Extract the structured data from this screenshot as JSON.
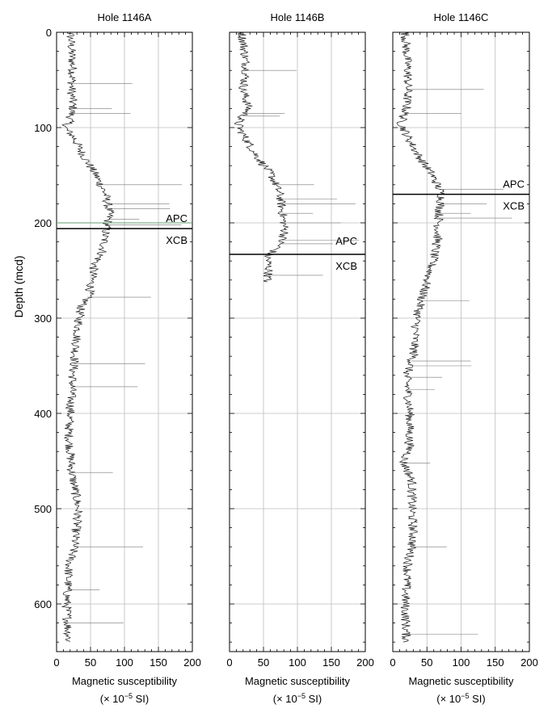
{
  "y_axis": {
    "label": "Depth (mcd)",
    "ticks": [
      0,
      100,
      200,
      300,
      400,
      500,
      600
    ],
    "range": [
      0,
      650
    ]
  },
  "x_axis": {
    "range": [
      0,
      200
    ],
    "ticks": [
      0,
      50,
      100,
      150,
      200
    ],
    "tick_labels": [
      "0",
      "50",
      "100",
      "150",
      "200"
    ],
    "label": "Magnetic susceptibility",
    "units": "(× 10",
    "units_sup": "−5",
    "units_end": " SI)"
  },
  "chart_data": [
    {
      "type": "line",
      "title": "Hole 1146A",
      "xlabel": "Magnetic susceptibility (× 10−5 SI)",
      "ylabel": "Depth (mcd)",
      "xlim": [
        0,
        200
      ],
      "ylim": [
        650,
        0
      ],
      "grid": true,
      "markers": [
        {
          "label": "APC",
          "depth": 200,
          "color": "#5f9f6f"
        },
        {
          "label": "XCB",
          "depth": 206,
          "color": "#000000"
        }
      ],
      "spike_depths": [
        54,
        80,
        85,
        160,
        180,
        185,
        196,
        202,
        278,
        348,
        372,
        462,
        540,
        585,
        620
      ],
      "profile": [
        {
          "d": 0,
          "v": 20
        },
        {
          "d": 20,
          "v": 22
        },
        {
          "d": 40,
          "v": 24
        },
        {
          "d": 60,
          "v": 22
        },
        {
          "d": 80,
          "v": 24
        },
        {
          "d": 95,
          "v": 18
        },
        {
          "d": 100,
          "v": 12
        },
        {
          "d": 110,
          "v": 25
        },
        {
          "d": 130,
          "v": 40
        },
        {
          "d": 150,
          "v": 58
        },
        {
          "d": 170,
          "v": 72
        },
        {
          "d": 190,
          "v": 78
        },
        {
          "d": 210,
          "v": 72
        },
        {
          "d": 230,
          "v": 68
        },
        {
          "d": 245,
          "v": 55
        },
        {
          "d": 260,
          "v": 52
        },
        {
          "d": 275,
          "v": 48
        },
        {
          "d": 290,
          "v": 35
        },
        {
          "d": 320,
          "v": 30
        },
        {
          "d": 360,
          "v": 24
        },
        {
          "d": 400,
          "v": 20
        },
        {
          "d": 420,
          "v": 18
        },
        {
          "d": 460,
          "v": 22
        },
        {
          "d": 500,
          "v": 32
        },
        {
          "d": 540,
          "v": 26
        },
        {
          "d": 560,
          "v": 18
        },
        {
          "d": 600,
          "v": 15
        },
        {
          "d": 640,
          "v": 18
        }
      ]
    },
    {
      "type": "line",
      "title": "Hole 1146B",
      "xlabel": "Magnetic susceptibility (× 10−5 SI)",
      "ylabel": "",
      "xlim": [
        0,
        200
      ],
      "ylim": [
        650,
        0
      ],
      "grid": true,
      "markers": [
        {
          "label": "APC",
          "depth": 220,
          "color": "#000000"
        },
        {
          "label": "XCB",
          "depth": 233,
          "color": "#000000"
        }
      ],
      "spike_depths": [
        40,
        85,
        88,
        160,
        175,
        180,
        190,
        200,
        218,
        222,
        255
      ],
      "profile": [
        {
          "d": 0,
          "v": 18
        },
        {
          "d": 20,
          "v": 22
        },
        {
          "d": 40,
          "v": 25
        },
        {
          "d": 60,
          "v": 20
        },
        {
          "d": 80,
          "v": 28
        },
        {
          "d": 95,
          "v": 12
        },
        {
          "d": 105,
          "v": 18
        },
        {
          "d": 130,
          "v": 40
        },
        {
          "d": 150,
          "v": 62
        },
        {
          "d": 170,
          "v": 74
        },
        {
          "d": 190,
          "v": 78
        },
        {
          "d": 210,
          "v": 82
        },
        {
          "d": 225,
          "v": 72
        },
        {
          "d": 235,
          "v": 56
        },
        {
          "d": 250,
          "v": 58
        },
        {
          "d": 262,
          "v": 55
        }
      ]
    },
    {
      "type": "line",
      "title": "Hole 1146C",
      "xlabel": "Magnetic susceptibility (× 10−5 SI)",
      "ylabel": "",
      "xlim": [
        0,
        200
      ],
      "ylim": [
        650,
        0
      ],
      "grid": true,
      "markers": [
        {
          "label": "APC",
          "depth": 170,
          "color": "#000000"
        },
        {
          "label": "XCB",
          "depth": 177,
          "color": "#000000"
        }
      ],
      "spike_depths": [
        60,
        85,
        165,
        180,
        190,
        195,
        282,
        345,
        350,
        362,
        375,
        452,
        540,
        632
      ],
      "profile": [
        {
          "d": 0,
          "v": 18
        },
        {
          "d": 20,
          "v": 20
        },
        {
          "d": 40,
          "v": 22
        },
        {
          "d": 60,
          "v": 22
        },
        {
          "d": 80,
          "v": 20
        },
        {
          "d": 95,
          "v": 12
        },
        {
          "d": 110,
          "v": 22
        },
        {
          "d": 130,
          "v": 38
        },
        {
          "d": 150,
          "v": 58
        },
        {
          "d": 170,
          "v": 72
        },
        {
          "d": 190,
          "v": 68
        },
        {
          "d": 220,
          "v": 65
        },
        {
          "d": 250,
          "v": 55
        },
        {
          "d": 280,
          "v": 42
        },
        {
          "d": 300,
          "v": 35
        },
        {
          "d": 340,
          "v": 30
        },
        {
          "d": 360,
          "v": 20
        },
        {
          "d": 400,
          "v": 25
        },
        {
          "d": 440,
          "v": 24
        },
        {
          "d": 450,
          "v": 15
        },
        {
          "d": 470,
          "v": 28
        },
        {
          "d": 500,
          "v": 28
        },
        {
          "d": 530,
          "v": 30
        },
        {
          "d": 560,
          "v": 22
        },
        {
          "d": 600,
          "v": 18
        },
        {
          "d": 640,
          "v": 20
        }
      ]
    }
  ]
}
